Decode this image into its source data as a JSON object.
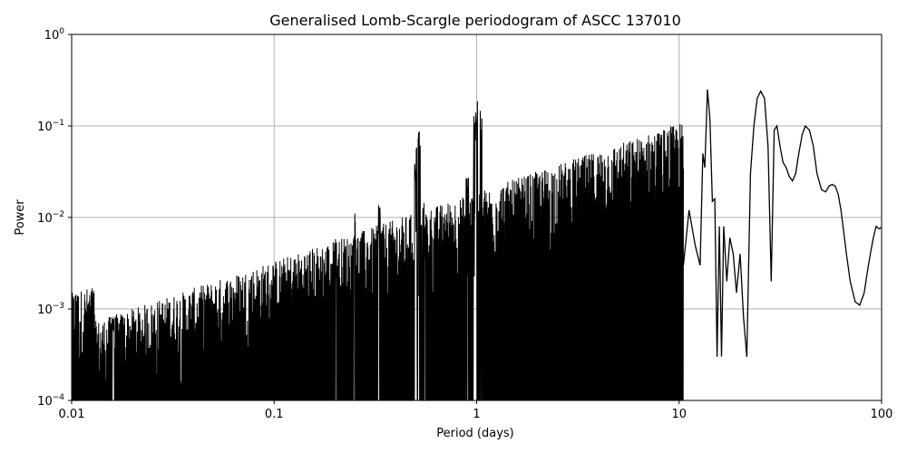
{
  "chart_data": {
    "type": "line",
    "title": "Generalised Lomb-Scargle periodogram of ASCC 137010",
    "xlabel": "Period (days)",
    "ylabel": "Power",
    "xscale": "log",
    "yscale": "log",
    "xlim": [
      0.01,
      100
    ],
    "ylim": [
      0.0001,
      1
    ],
    "grid": true,
    "line_color": "#000000",
    "grid_color": "#b0b0b0",
    "xticks": [
      {
        "value": 0.01,
        "label": "0.01"
      },
      {
        "value": 0.1,
        "label": "0.1"
      },
      {
        "value": 1,
        "label": "1"
      },
      {
        "value": 10,
        "label": "10"
      },
      {
        "value": 100,
        "label": "100"
      }
    ],
    "yticks": [
      {
        "value": 0.0001,
        "base": "10",
        "exp": "−4"
      },
      {
        "value": 0.001,
        "base": "10",
        "exp": "−3"
      },
      {
        "value": 0.01,
        "base": "10",
        "exp": "−2"
      },
      {
        "value": 0.1,
        "base": "10",
        "exp": "−1"
      },
      {
        "value": 1,
        "base": "10",
        "exp": "0"
      }
    ],
    "series": [
      {
        "x": [
          10.5,
          11.2,
          12.0,
          12.7,
          13.1,
          13.4,
          13.8,
          14.2,
          14.6,
          15.0,
          15.4,
          15.8,
          16.2,
          16.6,
          17.2,
          17.8,
          18.5,
          19.2,
          20.0,
          20.8,
          21.6,
          22.5,
          23.4,
          24.3,
          25.3,
          26.4,
          27.5,
          28.5,
          29.5,
          30.4,
          31.5,
          32.6,
          33.8,
          35.0,
          36.3,
          37.6,
          39.0,
          40.5,
          42.0,
          44.0,
          46.0,
          48.0,
          50.5,
          53.0,
          55.0,
          57.0,
          59.0,
          61.0,
          63.0,
          65.0,
          67.0,
          70.0,
          74.0,
          78.0,
          82.0,
          85.0,
          88.0,
          91.0,
          94.0,
          97.0,
          100.0
        ],
        "y": [
          0.003,
          0.012,
          0.005,
          0.003,
          0.05,
          0.035,
          0.25,
          0.12,
          0.015,
          0.016,
          0.0003,
          0.008,
          0.0003,
          0.008,
          0.002,
          0.006,
          0.004,
          0.0015,
          0.004,
          0.0008,
          0.0003,
          0.03,
          0.1,
          0.2,
          0.24,
          0.2,
          0.06,
          0.002,
          0.09,
          0.1,
          0.06,
          0.04,
          0.035,
          0.028,
          0.025,
          0.03,
          0.05,
          0.08,
          0.1,
          0.09,
          0.06,
          0.03,
          0.02,
          0.019,
          0.022,
          0.023,
          0.022,
          0.018,
          0.012,
          0.007,
          0.004,
          0.002,
          0.0012,
          0.0011,
          0.0015,
          0.0025,
          0.004,
          0.006,
          0.008,
          0.0075,
          0.0078
        ]
      }
    ]
  }
}
